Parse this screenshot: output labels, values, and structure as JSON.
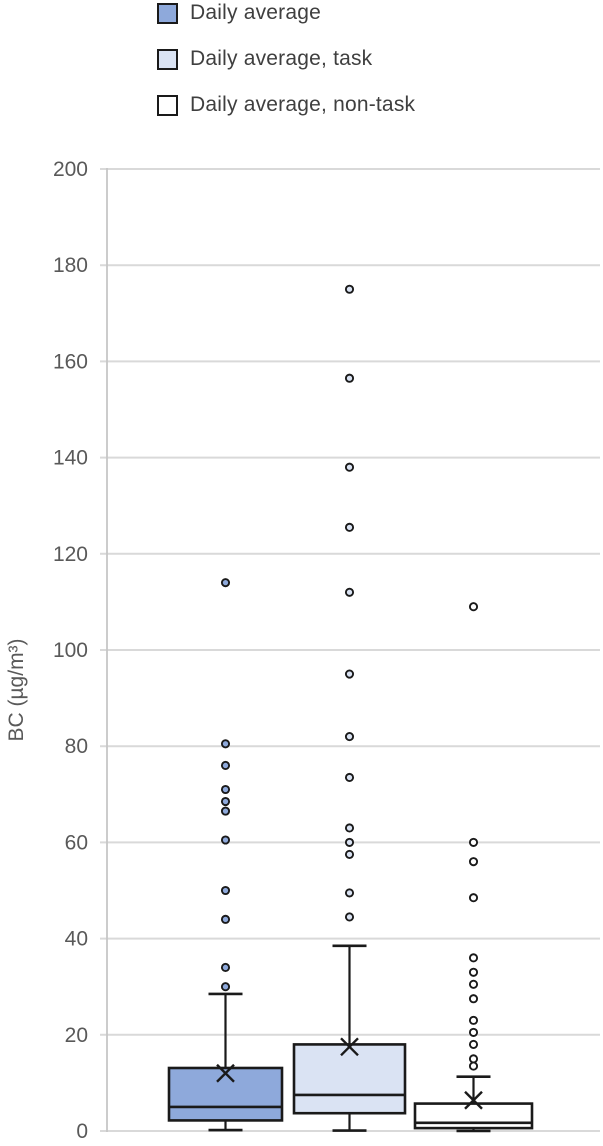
{
  "legend": {
    "items": [
      {
        "label": "Daily average",
        "fill": "#8EA9DB"
      },
      {
        "label": "Daily average, task",
        "fill": "#DAE3F3"
      },
      {
        "label": "Daily average, non-task",
        "fill": "#FFFFFF"
      }
    ]
  },
  "colors": {
    "gridline": "#d9d9d9",
    "axis_line": "#c6c6c6",
    "box_stroke": "#1a1a1a",
    "tick_text": "#595959",
    "axis_title_text": "#595959",
    "legend_text": "#3f3f3f"
  },
  "chart_data": {
    "type": "boxplot",
    "title": "",
    "xlabel": "",
    "ylabel": "BC (µg/m³)",
    "ylim": [
      0,
      200
    ],
    "ytick_step": 20,
    "ytick_labels": [
      "0",
      "20",
      "40",
      "60",
      "80",
      "100",
      "120",
      "140",
      "160",
      "180",
      "200"
    ],
    "grid": true,
    "legend_position": "top-left",
    "series": [
      {
        "name": "Daily average",
        "fill": "#8EA9DB",
        "q1": 2.2,
        "median": 5.0,
        "q3": 13.1,
        "mean": 12.0,
        "whisker_low": 0.2,
        "whisker_high": 28.5,
        "outliers": [
          114,
          80.5,
          76,
          71,
          68.5,
          66.5,
          60.5,
          50,
          44,
          34,
          30
        ]
      },
      {
        "name": "Daily average, task",
        "fill": "#DAE3F3",
        "q1": 3.7,
        "median": 7.5,
        "q3": 18.0,
        "mean": 17.5,
        "whisker_low": 0.1,
        "whisker_high": 38.5,
        "outliers": [
          175,
          156.5,
          138,
          125.5,
          112,
          95,
          82,
          73.5,
          63,
          60,
          57.5,
          49.5,
          44.5
        ]
      },
      {
        "name": "Daily average, non-task",
        "fill": "#FFFFFF",
        "q1": 0.6,
        "median": 1.7,
        "q3": 5.7,
        "mean": 6.4,
        "whisker_low": 0,
        "whisker_high": 11.3,
        "outliers": [
          109,
          60,
          56,
          48.5,
          36,
          33,
          30.5,
          27.5,
          23,
          20.5,
          18,
          15,
          13.5
        ]
      }
    ]
  }
}
